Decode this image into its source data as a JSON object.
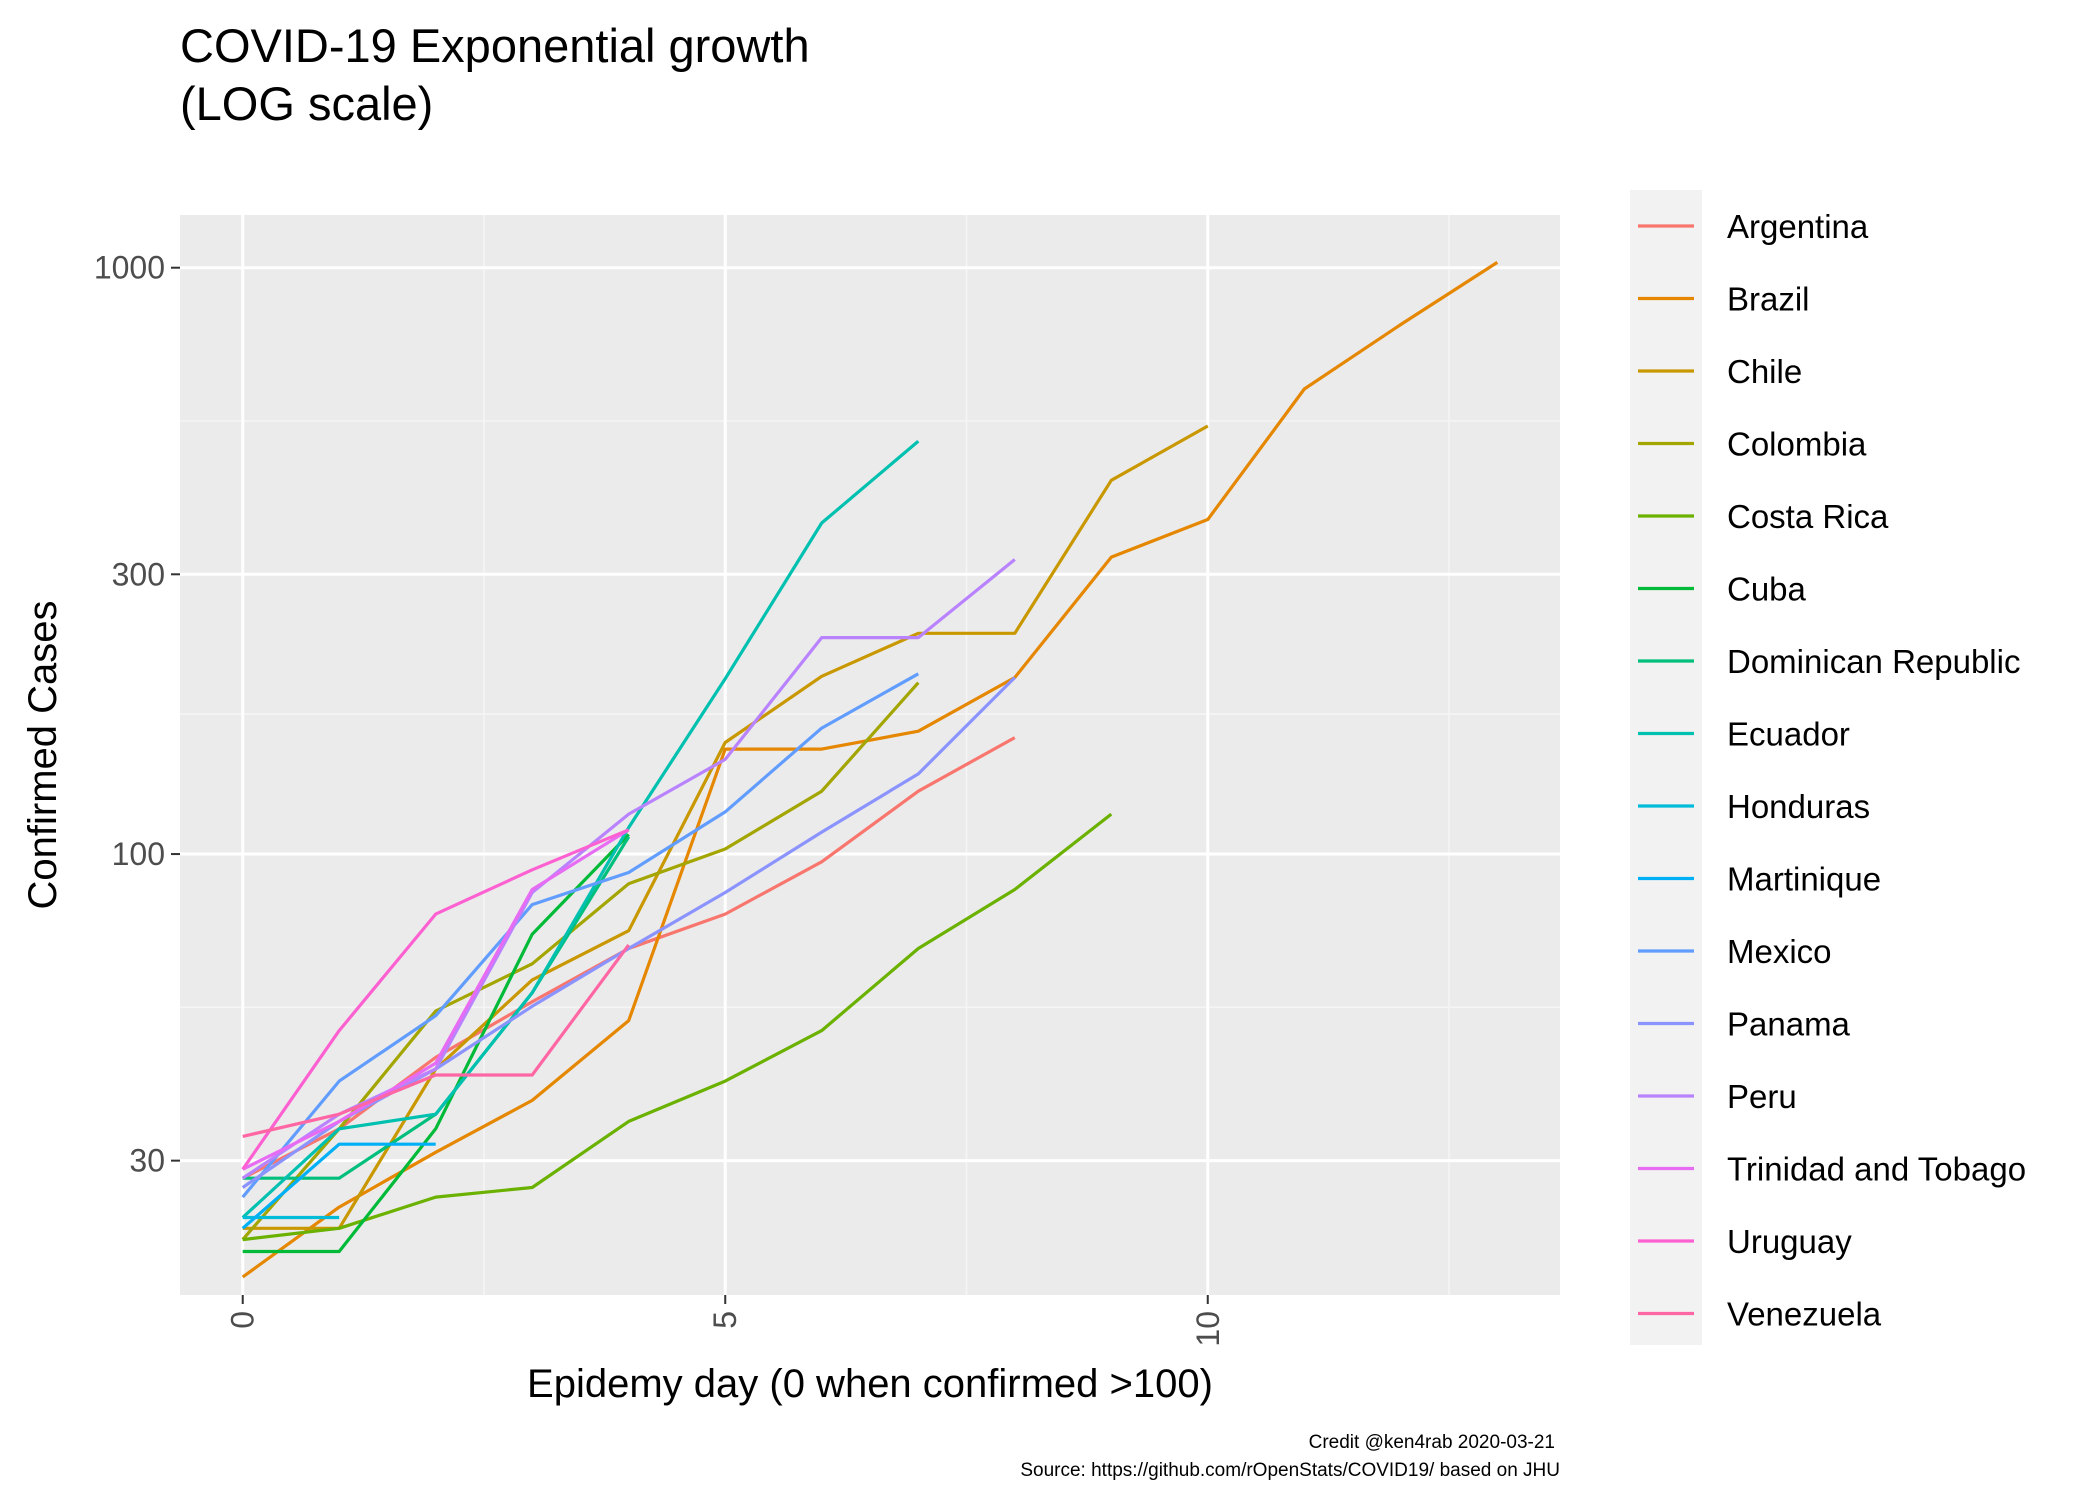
{
  "chart_data": {
    "type": "line",
    "title": [
      "COVID-19 Exponential growth",
      "(LOG scale)"
    ],
    "xlabel": "Epidemy day (0 when confirmed >100)",
    "ylabel": "Confirmed Cases",
    "x_ticks": [
      0,
      5,
      10
    ],
    "y_ticks": [
      30,
      100,
      300,
      1000
    ],
    "y_scale": "log",
    "xlim": [
      -0.65,
      13.65
    ],
    "ylim": [
      17.7,
      1230
    ],
    "grid": true,
    "legend_position": "right",
    "caption": [
      "Credit @ken4rab 2020-03-21",
      "Source: https://github.com/rOpenStats/COVID19/ based on JHU"
    ],
    "series": [
      {
        "name": "Argentina",
        "color": "#F8766D",
        "x": [
          0,
          1,
          2,
          3,
          4,
          5,
          6,
          7,
          8
        ],
        "y": [
          28,
          34,
          45,
          56,
          69,
          79,
          97,
          128,
          158
        ]
      },
      {
        "name": "Brazil",
        "color": "#E58700",
        "x": [
          0,
          1,
          2,
          3,
          4,
          5,
          6,
          7,
          8,
          9,
          10,
          11,
          12,
          13
        ],
        "y": [
          19,
          25,
          31,
          38,
          52,
          151,
          151,
          162,
          200,
          321,
          372,
          621,
          800,
          1021
        ]
      },
      {
        "name": "Chile",
        "color": "#C99800",
        "x": [
          0,
          1,
          2,
          3,
          4,
          5,
          6,
          7,
          8,
          9,
          10
        ],
        "y": [
          23,
          23,
          43,
          61,
          74,
          155,
          201,
          238,
          238,
          434,
          537
        ]
      },
      {
        "name": "Colombia",
        "color": "#A3A500",
        "x": [
          0,
          1,
          2,
          3,
          4,
          5,
          6,
          7
        ],
        "y": [
          22,
          34,
          54,
          65,
          89,
          102,
          128,
          196
        ]
      },
      {
        "name": "Costa Rica",
        "color": "#6BB100",
        "x": [
          0,
          1,
          2,
          3,
          4,
          5,
          6,
          7,
          8,
          9
        ],
        "y": [
          22,
          23,
          26,
          27,
          35,
          41,
          50,
          69,
          87,
          117
        ]
      },
      {
        "name": "Cuba",
        "color": "#00BA38",
        "x": [
          0,
          1,
          2,
          3,
          4
        ],
        "y": [
          21,
          21,
          34,
          73,
          108
        ]
      },
      {
        "name": "Dominican Republic",
        "color": "#00BF7D",
        "x": [
          0,
          1,
          2,
          3,
          4
        ],
        "y": [
          28,
          28,
          36,
          58,
          107
        ]
      },
      {
        "name": "Ecuador",
        "color": "#00C0AF",
        "x": [
          0,
          1,
          2,
          3,
          4,
          5,
          6,
          7
        ],
        "y": [
          24,
          34,
          36,
          58,
          111,
          199,
          367,
          506
        ]
      },
      {
        "name": "Honduras",
        "color": "#00BCD8",
        "x": [
          0,
          1
        ],
        "y": [
          24,
          24
        ]
      },
      {
        "name": "Martinique",
        "color": "#00B0F6",
        "x": [
          0,
          1,
          2
        ],
        "y": [
          23,
          32,
          32
        ]
      },
      {
        "name": "Mexico",
        "color": "#619CFF",
        "x": [
          0,
          1,
          2,
          3,
          4,
          5,
          6,
          7
        ],
        "y": [
          26,
          41,
          53,
          82,
          93,
          118,
          164,
          203
        ]
      },
      {
        "name": "Panama",
        "color": "#8B93FF",
        "x": [
          0,
          1,
          2,
          3,
          4,
          5,
          6,
          7,
          8
        ],
        "y": [
          27,
          35,
          43,
          55,
          69,
          86,
          109,
          137,
          200
        ]
      },
      {
        "name": "Peru",
        "color": "#B983FF",
        "x": [
          0,
          1,
          2,
          3,
          4,
          5,
          6,
          7,
          8
        ],
        "y": [
          28,
          36,
          43,
          86,
          117,
          145,
          234,
          234,
          318
        ]
      },
      {
        "name": "Trinidad and Tobago",
        "color": "#E76BF3",
        "x": [
          0,
          1,
          2,
          3,
          4
        ],
        "y": [
          29,
          35,
          44,
          87,
          110
        ]
      },
      {
        "name": "Uruguay",
        "color": "#FD61D1",
        "x": [
          0,
          1,
          2,
          3,
          4
        ],
        "y": [
          29,
          50,
          79,
          94,
          110
        ]
      },
      {
        "name": "Venezuela",
        "color": "#FF67A4",
        "x": [
          0,
          1,
          2,
          3,
          4
        ],
        "y": [
          33,
          36,
          42,
          42,
          70
        ]
      }
    ]
  }
}
